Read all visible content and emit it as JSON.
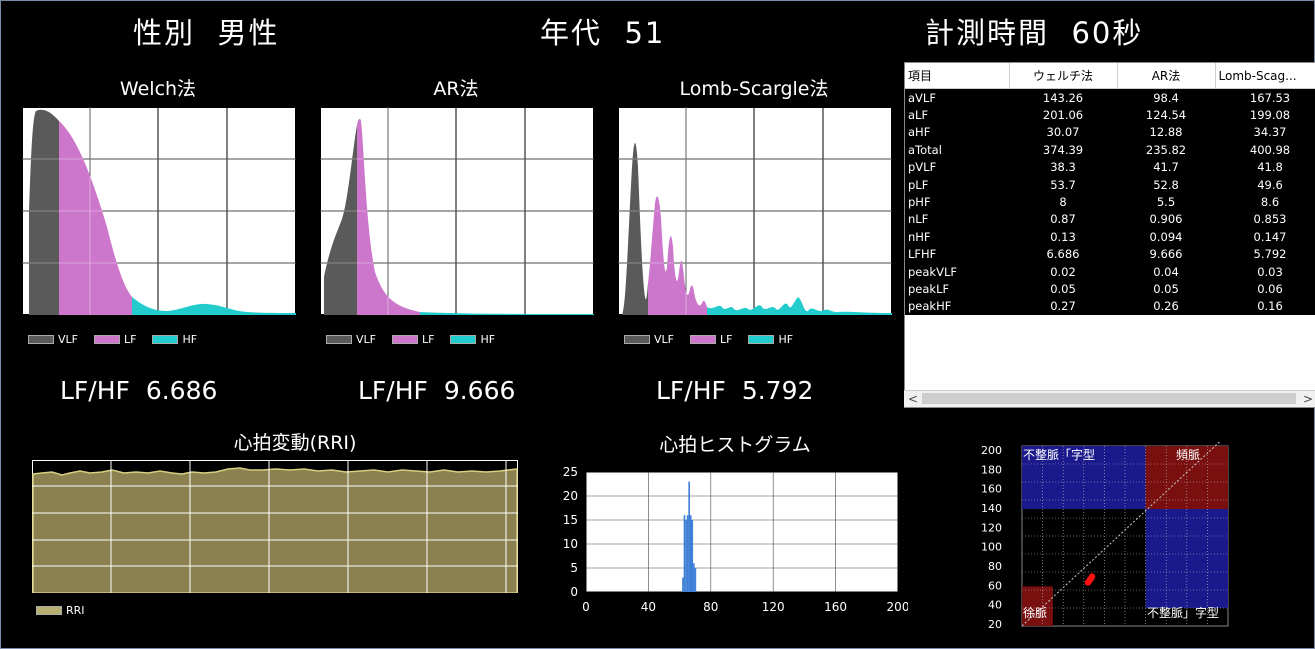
{
  "header": {
    "sex_label": "性別",
    "sex_value": "男性",
    "age_label": "年代",
    "age_value": "51",
    "time_label": "計測時間",
    "time_value": "60秒"
  },
  "spectra": [
    {
      "title": "Welch法",
      "ratio_label": "LF/HF",
      "ratio_value": "6.686"
    },
    {
      "title": "AR法",
      "ratio_label": "LF/HF",
      "ratio_value": "9.666"
    },
    {
      "title": "Lomb-Scargle法",
      "ratio_label": "LF/HF",
      "ratio_value": "5.792"
    }
  ],
  "spectrum_legend": [
    "VLF",
    "LF",
    "HF"
  ],
  "colors": {
    "vlf": "#5a5a5a",
    "lf": "#cc77cc",
    "hf": "#22cccc",
    "rri": "#8a8050",
    "rri_line": "#d8d080",
    "hist": "#3d7fd6",
    "blue_zone": "#1a1a8c",
    "red_zone": "#7a0f10"
  },
  "table": {
    "columns": [
      "項目",
      "ウェルチ法",
      "AR法",
      "Lomb-Scag..."
    ],
    "rows": [
      [
        "aVLF",
        "143.26",
        "98.4",
        "167.53"
      ],
      [
        "aLF",
        "201.06",
        "124.54",
        "199.08"
      ],
      [
        "aHF",
        "30.07",
        "12.88",
        "34.37"
      ],
      [
        "aTotal",
        "374.39",
        "235.82",
        "400.98"
      ],
      [
        "pVLF",
        "38.3",
        "41.7",
        "41.8"
      ],
      [
        "pLF",
        "53.7",
        "52.8",
        "49.6"
      ],
      [
        "pHF",
        "8",
        "5.5",
        "8.6"
      ],
      [
        "nLF",
        "0.87",
        "0.906",
        "0.853"
      ],
      [
        "nHF",
        "0.13",
        "0.094",
        "0.147"
      ],
      [
        "LFHF",
        "6.686",
        "9.666",
        "5.792"
      ],
      [
        "peakVLF",
        "0.02",
        "0.04",
        "0.03"
      ],
      [
        "peakLF",
        "0.05",
        "0.05",
        "0.06"
      ],
      [
        "peakHF",
        "0.27",
        "0.26",
        "0.16"
      ]
    ]
  },
  "rri": {
    "title": "心拍変動(RRI)",
    "legend": "RRI"
  },
  "histogram": {
    "title": "心拍ヒストグラム"
  },
  "poincare": {
    "labels": {
      "top_left": "不整脈「字型",
      "top_right": "頻脈",
      "bottom_left": "徐脈",
      "bottom_right": "不整脈」字型"
    }
  },
  "chart_data": [
    {
      "type": "bar",
      "title": "心拍ヒストグラム",
      "xlim": [
        0,
        200
      ],
      "ylim": [
        0,
        25
      ],
      "xticks": [
        "0",
        "40",
        "80",
        "120",
        "160",
        "200"
      ],
      "yticks": [
        "0",
        "5",
        "10",
        "15",
        "20",
        "25"
      ],
      "x": [
        62,
        63,
        64,
        65,
        66,
        67,
        68,
        69,
        70
      ],
      "values": [
        3,
        16,
        15,
        16,
        23,
        16,
        15,
        6,
        5
      ]
    },
    {
      "type": "scatter",
      "title": "",
      "xlim": [
        0,
        200
      ],
      "ylim": [
        0,
        200
      ],
      "yticks": [
        "20",
        "40",
        "60",
        "80",
        "100",
        "120",
        "140",
        "160",
        "180",
        "200"
      ],
      "x": [
        64,
        65,
        66,
        67,
        68
      ],
      "y": [
        63,
        64,
        66,
        67,
        69
      ]
    }
  ]
}
